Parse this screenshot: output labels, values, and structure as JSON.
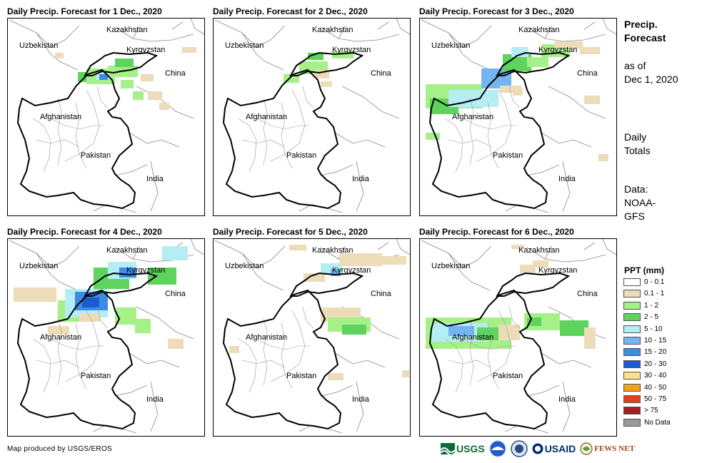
{
  "panels": [
    {
      "title": "Daily Precip. Forecast for 1 Dec., 2020"
    },
    {
      "title": "Daily Precip. Forecast for 2 Dec., 2020"
    },
    {
      "title": "Daily Precip. Forecast for 3 Dec., 2020"
    },
    {
      "title": "Daily Precip. Forecast for 4 Dec., 2020"
    },
    {
      "title": "Daily Precip. Forecast for 5 Dec., 2020"
    },
    {
      "title": "Daily Precip. Forecast for 6 Dec., 2020"
    }
  ],
  "map_labels": {
    "kazakhstan": "Kazakhstan",
    "uzbekistan": "Uzbekistan",
    "kyrgyzstan": "Kyrgyzstan",
    "china": "China",
    "afghanistan": "Afghanistan",
    "pakistan": "Pakistan",
    "india": "India"
  },
  "sidebar": {
    "title_line1": "Precip.",
    "title_line2": "Forecast",
    "asof_line1": "as of",
    "asof_line2": "Dec 1, 2020",
    "daily_line1": "Daily",
    "daily_line2": "Totals",
    "data_line1": "Data:",
    "data_line2": "NOAA-",
    "data_line3": "GFS"
  },
  "legend": {
    "title": "PPT (mm)",
    "items": [
      {
        "label": "0 - 0.1",
        "color": "#ffffff"
      },
      {
        "label": "0.1 - 1",
        "color": "#ecdcb8"
      },
      {
        "label": "1 - 2",
        "color": "#a6f08a"
      },
      {
        "label": "2 - 5",
        "color": "#5ed45e"
      },
      {
        "label": "5 - 10",
        "color": "#b4eef4"
      },
      {
        "label": "10 - 15",
        "color": "#74b4f0"
      },
      {
        "label": "15 - 20",
        "color": "#3c8ce4"
      },
      {
        "label": "20 - 30",
        "color": "#1e5ad2"
      },
      {
        "label": "30 - 40",
        "color": "#fce08a"
      },
      {
        "label": "40 - 50",
        "color": "#f4a018"
      },
      {
        "label": "50 - 75",
        "color": "#e4401c"
      },
      {
        "label": "> 75",
        "color": "#a41e1e"
      },
      {
        "label": "No Data",
        "color": "#9a9a9a"
      }
    ]
  },
  "footer": {
    "credit": "Map produced by USGS/EROS"
  },
  "logos": {
    "usgs": "USGS",
    "usaid": "USAID",
    "fewsnet": "FEWS NET"
  }
}
